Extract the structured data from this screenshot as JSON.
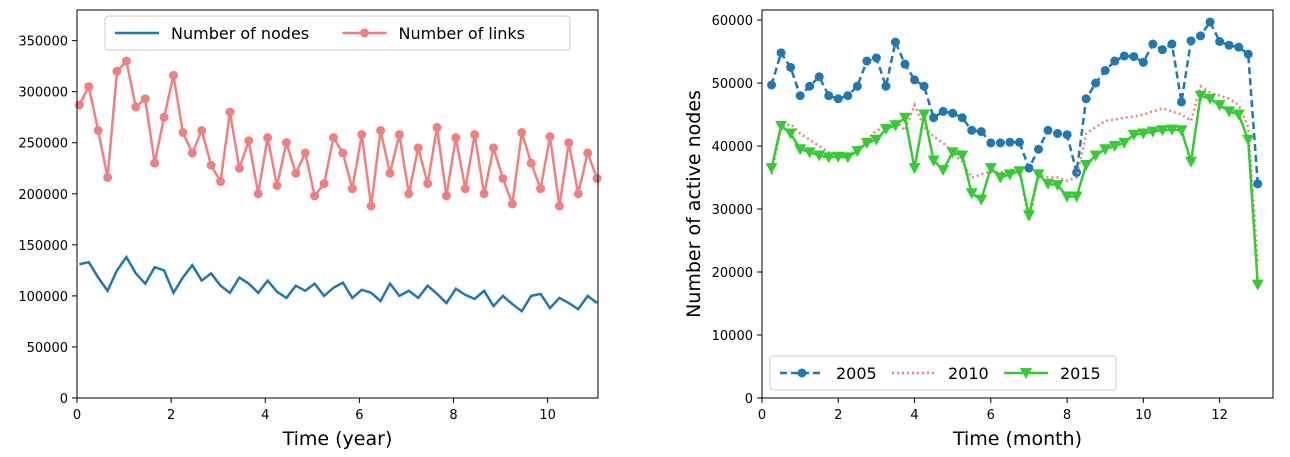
{
  "chart_data": [
    {
      "type": "line",
      "xlabel": "Time (year)",
      "x": [
        0.05,
        0.25,
        0.45,
        0.65,
        0.85,
        1.05,
        1.25,
        1.45,
        1.65,
        1.85,
        2.05,
        2.25,
        2.45,
        2.65,
        2.85,
        3.05,
        3.25,
        3.45,
        3.65,
        3.85,
        4.05,
        4.25,
        4.45,
        4.65,
        4.85,
        5.05,
        5.25,
        5.45,
        5.65,
        5.85,
        6.05,
        6.25,
        6.45,
        6.65,
        6.85,
        7.05,
        7.25,
        7.45,
        7.65,
        7.85,
        8.05,
        8.25,
        8.45,
        8.65,
        8.85,
        9.05,
        9.25,
        9.45,
        9.65,
        9.85,
        10.05,
        10.25,
        10.45,
        10.65,
        10.85,
        11.05
      ],
      "series": [
        {
          "name": "Number of nodes",
          "color": "#1f77b4",
          "linestyle": "solid",
          "values": [
            131000,
            133000,
            118000,
            105000,
            125000,
            138000,
            122000,
            112000,
            128000,
            125000,
            103000,
            118000,
            130000,
            115000,
            122000,
            110000,
            103000,
            118000,
            112000,
            103000,
            115000,
            104000,
            98000,
            110000,
            105000,
            112000,
            100000,
            108000,
            113000,
            98000,
            106000,
            103000,
            95000,
            112000,
            100000,
            105000,
            98000,
            110000,
            102000,
            93000,
            107000,
            101000,
            97000,
            105000,
            90000,
            100000,
            92000,
            85000,
            100000,
            102000,
            88000,
            98000,
            93000,
            87000,
            100000,
            93000
          ]
        },
        {
          "name": "Number of links",
          "color": "#f08080",
          "linestyle": "solid",
          "marker": "o",
          "values": [
            287000,
            305000,
            262000,
            216000,
            320000,
            330000,
            285000,
            293000,
            230000,
            275000,
            316000,
            260000,
            240000,
            262000,
            228000,
            212000,
            280000,
            225000,
            252000,
            200000,
            255000,
            208000,
            250000,
            220000,
            240000,
            198000,
            210000,
            255000,
            240000,
            205000,
            258000,
            188000,
            262000,
            220000,
            258000,
            200000,
            245000,
            210000,
            265000,
            198000,
            255000,
            205000,
            258000,
            200000,
            245000,
            215000,
            190000,
            260000,
            230000,
            205000,
            256000,
            188000,
            250000,
            200000,
            240000,
            215000
          ]
        }
      ],
      "xlim": [
        0,
        11.07
      ],
      "xticks": [
        0,
        2,
        4,
        6,
        8,
        10
      ],
      "ylim": [
        0,
        380000
      ],
      "yticks": [
        0,
        50000,
        100000,
        150000,
        200000,
        250000,
        300000,
        350000
      ],
      "legend": "upper center"
    },
    {
      "type": "line",
      "xlabel": "Time (month)",
      "ylabel": "Number of active nodes",
      "x": [
        0.25,
        0.5,
        0.75,
        1,
        1.25,
        1.5,
        1.75,
        2,
        2.25,
        2.5,
        2.75,
        3,
        3.25,
        3.5,
        3.75,
        4,
        4.25,
        4.5,
        4.75,
        5,
        5.25,
        5.5,
        5.75,
        6,
        6.25,
        6.5,
        6.75,
        7,
        7.25,
        7.5,
        7.75,
        8,
        8.25,
        8.5,
        8.75,
        9,
        9.25,
        9.5,
        9.75,
        10,
        10.25,
        10.5,
        10.75,
        11,
        11.25,
        11.5,
        11.75,
        12,
        12.25,
        12.5,
        12.75,
        13
      ],
      "series": [
        {
          "name": "2005",
          "color": "#1f77b4",
          "linestyle": "dashed",
          "marker": "o",
          "values": [
            49700,
            54800,
            52500,
            48000,
            49500,
            51000,
            48000,
            47500,
            48000,
            49500,
            53500,
            54000,
            49500,
            56500,
            53000,
            50500,
            49500,
            44500,
            45500,
            45200,
            44500,
            42500,
            42300,
            40500,
            40500,
            40600,
            40600,
            36500,
            39500,
            42500,
            42000,
            41800,
            35800,
            47500,
            50000,
            52000,
            53500,
            54300,
            54200,
            53300,
            56200,
            55300,
            56200,
            47000,
            56700,
            57500,
            59700,
            56600,
            56000,
            55700,
            54600,
            34000
          ]
        },
        {
          "name": "2010",
          "color": "#f08080",
          "linestyle": "dotted",
          "values": [
            35500,
            43000,
            43500,
            42000,
            41000,
            40000,
            39000,
            38500,
            38500,
            39500,
            41000,
            42500,
            43000,
            44000,
            42500,
            46500,
            43000,
            41500,
            40500,
            39000,
            37500,
            35000,
            35500,
            36000,
            35800,
            36200,
            36500,
            28000,
            35500,
            35000,
            35000,
            34500,
            35000,
            42000,
            43000,
            44000,
            44200,
            44500,
            44700,
            45000,
            45500,
            46000,
            45500,
            45000,
            44000,
            49500,
            48500,
            48000,
            47500,
            46500,
            43000,
            21500
          ]
        },
        {
          "name": "2015",
          "color": "#33cc33",
          "linestyle": "solid",
          "marker": "v",
          "values": [
            36500,
            43200,
            42000,
            39500,
            39000,
            38500,
            38200,
            38300,
            38200,
            39200,
            40500,
            41000,
            42700,
            43300,
            44500,
            36500,
            45000,
            37700,
            36200,
            39000,
            38500,
            32500,
            31500,
            36500,
            35000,
            35500,
            36000,
            29000,
            35500,
            34000,
            33800,
            32000,
            32000,
            37000,
            38500,
            39500,
            40000,
            40500,
            41800,
            42000,
            42300,
            42500,
            42600,
            42500,
            37500,
            48000,
            47500,
            46500,
            45500,
            45000,
            41000,
            18000
          ]
        }
      ],
      "xlim": [
        0,
        13.4
      ],
      "xticks": [
        0,
        2,
        4,
        6,
        8,
        10,
        12
      ],
      "ylim": [
        0,
        61600
      ],
      "yticks": [
        0,
        10000,
        20000,
        30000,
        40000,
        50000,
        60000
      ],
      "legend": "lower left"
    }
  ]
}
